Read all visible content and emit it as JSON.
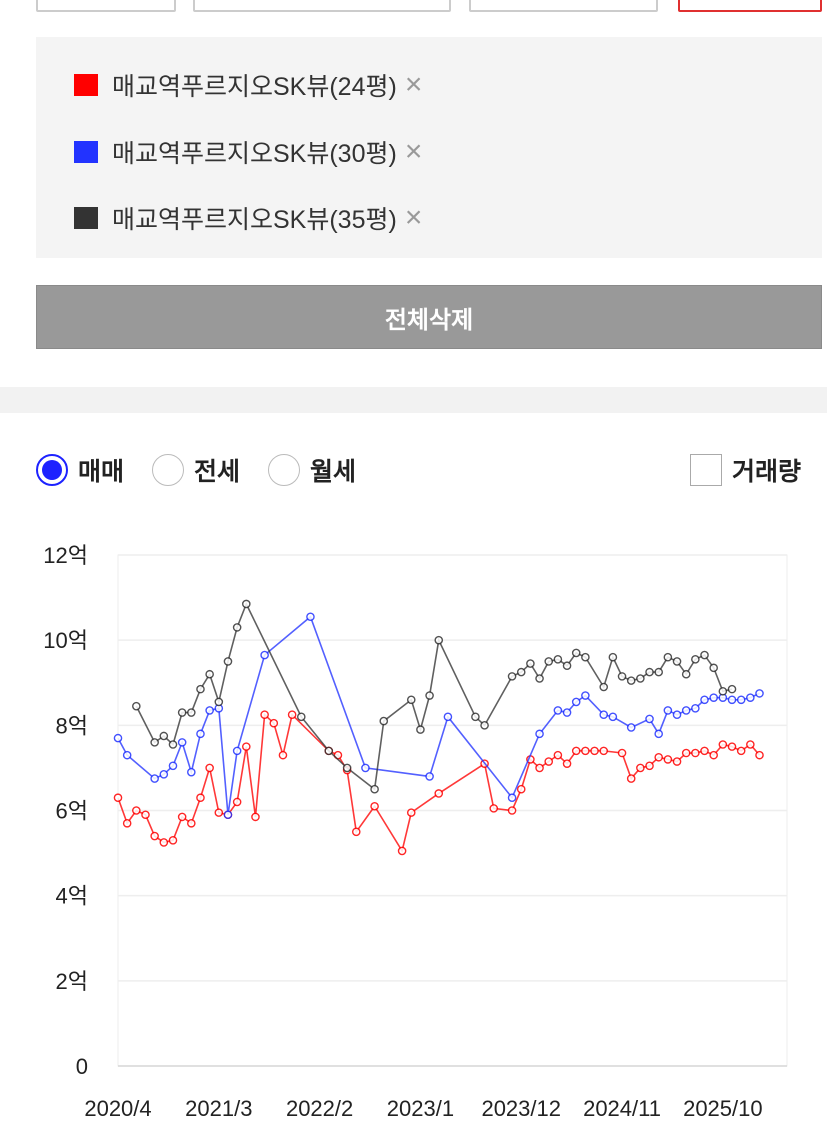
{
  "legend": {
    "items": [
      {
        "label": "매교역푸르지오SK뷰(24평)",
        "color": "#ff0000"
      },
      {
        "label": "매교역푸르지오SK뷰(30평)",
        "color": "#2233ff"
      },
      {
        "label": "매교역푸르지오SK뷰(35평)",
        "color": "#333333"
      }
    ],
    "remove_icon": "×"
  },
  "delete_all_label": "전체삭제",
  "trade_types": [
    {
      "label": "매매",
      "selected": true
    },
    {
      "label": "전세",
      "selected": false
    },
    {
      "label": "월세",
      "selected": false
    }
  ],
  "volume_label": "거래량",
  "chart_data": {
    "type": "line",
    "xlabel": "",
    "ylabel": "",
    "x_ticks": [
      "2020/4",
      "2021/3",
      "2022/2",
      "2023/1",
      "2023/12",
      "2024/11",
      "2025/10"
    ],
    "y_ticks": [
      "0",
      "2억",
      "4억",
      "6억",
      "8억",
      "10억",
      "12억"
    ],
    "ylim": [
      0,
      12
    ],
    "xlim": [
      "2020/4",
      "2026/5"
    ],
    "y_unit": "억",
    "grid": true,
    "series": [
      {
        "name": "매교역푸르지오SK뷰(24평)",
        "color": "#ff0000",
        "points": [
          [
            "2020/4",
            6.3
          ],
          [
            "2020/5",
            5.7
          ],
          [
            "2020/6",
            6.0
          ],
          [
            "2020/7",
            5.9
          ],
          [
            "2020/8",
            5.4
          ],
          [
            "2020/9",
            5.25
          ],
          [
            "2020/10",
            5.3
          ],
          [
            "2020/11",
            5.85
          ],
          [
            "2020/12",
            5.7
          ],
          [
            "2021/1",
            6.3
          ],
          [
            "2021/2",
            7.0
          ],
          [
            "2021/3",
            5.95
          ],
          [
            "2021/4",
            5.9
          ],
          [
            "2021/5",
            6.2
          ],
          [
            "2021/6",
            7.5
          ],
          [
            "2021/7",
            5.85
          ],
          [
            "2021/8",
            8.25
          ],
          [
            "2021/9",
            8.05
          ],
          [
            "2021/10",
            7.3
          ],
          [
            "2021/11",
            8.25
          ],
          [
            "2022/3",
            7.4
          ],
          [
            "2022/4",
            7.3
          ],
          [
            "2022/5",
            6.95
          ],
          [
            "2022/6",
            5.5
          ],
          [
            "2022/8",
            6.1
          ],
          [
            "2022/11",
            5.05
          ],
          [
            "2022/12",
            5.95
          ],
          [
            "2023/3",
            6.4
          ],
          [
            "2023/8",
            7.1
          ],
          [
            "2023/9",
            6.05
          ],
          [
            "2023/11",
            6.0
          ],
          [
            "2023/12",
            6.5
          ],
          [
            "2024/1",
            7.2
          ],
          [
            "2024/2",
            7.0
          ],
          [
            "2024/3",
            7.15
          ],
          [
            "2024/4",
            7.3
          ],
          [
            "2024/5",
            7.1
          ],
          [
            "2024/6",
            7.4
          ],
          [
            "2024/7",
            7.4
          ],
          [
            "2024/8",
            7.4
          ],
          [
            "2024/9",
            7.4
          ],
          [
            "2024/11",
            7.35
          ],
          [
            "2024/12",
            6.75
          ],
          [
            "2025/1",
            7.0
          ],
          [
            "2025/2",
            7.05
          ],
          [
            "2025/3",
            7.25
          ],
          [
            "2025/4",
            7.2
          ],
          [
            "2025/5",
            7.15
          ],
          [
            "2025/6",
            7.35
          ],
          [
            "2025/7",
            7.35
          ],
          [
            "2025/8",
            7.4
          ],
          [
            "2025/9",
            7.3
          ],
          [
            "2025/10",
            7.55
          ],
          [
            "2025/11",
            7.5
          ],
          [
            "2025/12",
            7.4
          ],
          [
            "2026/1",
            7.55
          ],
          [
            "2026/2",
            7.3
          ]
        ]
      },
      {
        "name": "매교역푸르지오SK뷰(30평)",
        "color": "#2233ff",
        "points": [
          [
            "2020/4",
            7.7
          ],
          [
            "2020/5",
            7.3
          ],
          [
            "2020/8",
            6.75
          ],
          [
            "2020/9",
            6.85
          ],
          [
            "2020/10",
            7.05
          ],
          [
            "2020/11",
            7.6
          ],
          [
            "2020/12",
            6.9
          ],
          [
            "2021/1",
            7.8
          ],
          [
            "2021/2",
            8.35
          ],
          [
            "2021/3",
            8.4
          ],
          [
            "2021/4",
            5.9
          ],
          [
            "2021/5",
            7.4
          ],
          [
            "2021/8",
            9.65
          ],
          [
            "2022/1",
            10.55
          ],
          [
            "2022/7",
            7.0
          ],
          [
            "2023/2",
            6.8
          ],
          [
            "2023/4",
            8.2
          ],
          [
            "2023/11",
            6.3
          ],
          [
            "2024/2",
            7.8
          ],
          [
            "2024/4",
            8.35
          ],
          [
            "2024/5",
            8.3
          ],
          [
            "2024/6",
            8.55
          ],
          [
            "2024/7",
            8.7
          ],
          [
            "2024/9",
            8.25
          ],
          [
            "2024/10",
            8.2
          ],
          [
            "2024/12",
            7.95
          ],
          [
            "2025/2",
            8.15
          ],
          [
            "2025/3",
            7.8
          ],
          [
            "2025/4",
            8.35
          ],
          [
            "2025/5",
            8.25
          ],
          [
            "2025/6",
            8.35
          ],
          [
            "2025/7",
            8.4
          ],
          [
            "2025/8",
            8.6
          ],
          [
            "2025/9",
            8.65
          ],
          [
            "2025/10",
            8.65
          ],
          [
            "2025/11",
            8.6
          ],
          [
            "2025/12",
            8.6
          ],
          [
            "2026/1",
            8.65
          ],
          [
            "2026/2",
            8.75
          ]
        ]
      },
      {
        "name": "매교역푸르지오SK뷰(35평)",
        "color": "#333333",
        "points": [
          [
            "2020/6",
            8.45
          ],
          [
            "2020/8",
            7.6
          ],
          [
            "2020/9",
            7.75
          ],
          [
            "2020/10",
            7.55
          ],
          [
            "2020/11",
            8.3
          ],
          [
            "2020/12",
            8.3
          ],
          [
            "2021/1",
            8.85
          ],
          [
            "2021/2",
            9.2
          ],
          [
            "2021/3",
            8.55
          ],
          [
            "2021/4",
            9.5
          ],
          [
            "2021/5",
            10.3
          ],
          [
            "2021/6",
            10.85
          ],
          [
            "2021/12",
            8.2
          ],
          [
            "2022/3",
            7.4
          ],
          [
            "2022/5",
            7.0
          ],
          [
            "2022/8",
            6.5
          ],
          [
            "2022/9",
            8.1
          ],
          [
            "2022/12",
            8.6
          ],
          [
            "2023/1",
            7.9
          ],
          [
            "2023/2",
            8.7
          ],
          [
            "2023/3",
            10.0
          ],
          [
            "2023/7",
            8.2
          ],
          [
            "2023/8",
            8.0
          ],
          [
            "2023/11",
            9.15
          ],
          [
            "2023/12",
            9.25
          ],
          [
            "2024/1",
            9.45
          ],
          [
            "2024/2",
            9.1
          ],
          [
            "2024/3",
            9.5
          ],
          [
            "2024/4",
            9.55
          ],
          [
            "2024/5",
            9.4
          ],
          [
            "2024/6",
            9.7
          ],
          [
            "2024/7",
            9.6
          ],
          [
            "2024/9",
            8.9
          ],
          [
            "2024/10",
            9.6
          ],
          [
            "2024/11",
            9.15
          ],
          [
            "2024/12",
            9.05
          ],
          [
            "2025/1",
            9.1
          ],
          [
            "2025/2",
            9.25
          ],
          [
            "2025/3",
            9.25
          ],
          [
            "2025/4",
            9.6
          ],
          [
            "2025/5",
            9.5
          ],
          [
            "2025/6",
            9.2
          ],
          [
            "2025/7",
            9.55
          ],
          [
            "2025/8",
            9.65
          ],
          [
            "2025/9",
            9.35
          ],
          [
            "2025/10",
            8.8
          ],
          [
            "2025/11",
            8.85
          ]
        ]
      }
    ]
  }
}
